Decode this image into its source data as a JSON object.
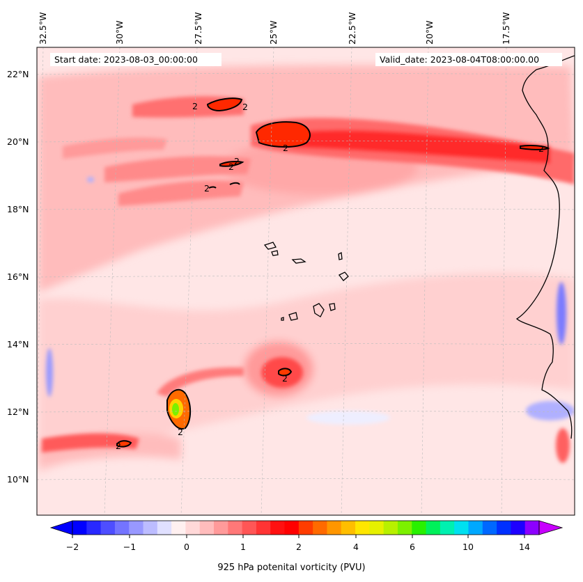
{
  "map": {
    "start_date": "Start date: 2023-08-03_00:00:00",
    "valid_date": "Valid_date: 2023-08-04T08:00:00.00",
    "lon_labels": [
      "32.5°W",
      "30°W",
      "27.5°W",
      "25°W",
      "22.5°W",
      "20°W",
      "17.5°W"
    ],
    "lat_labels": [
      "22°N",
      "20°N",
      "18°N",
      "16°N",
      "14°N",
      "12°N",
      "10°N"
    ],
    "contour_label": "2",
    "colorbar": {
      "label": "925 hPa potenital vorticity (PVU)",
      "ticks": [
        "−2",
        "−1",
        "0",
        "1",
        "2",
        "4",
        "6",
        "10",
        "14"
      ],
      "colors": [
        "#0000ff",
        "#2828ff",
        "#4e4eff",
        "#7474ff",
        "#9898ff",
        "#bcbcff",
        "#e0e0ff",
        "#fff0f0",
        "#ffd8d8",
        "#ffbcbc",
        "#ff9a9a",
        "#ff7878",
        "#ff5656",
        "#ff3434",
        "#ff1010",
        "#ff0000",
        "#ff3c00",
        "#ff6a00",
        "#ff9600",
        "#ffbe00",
        "#ffe600",
        "#e6f000",
        "#b8f000",
        "#7cf000",
        "#28f000",
        "#00f05a",
        "#00f0b0",
        "#00e0f0",
        "#00a8ff",
        "#0068ff",
        "#0030ff",
        "#1e00ff",
        "#8c00ff"
      ]
    }
  }
}
